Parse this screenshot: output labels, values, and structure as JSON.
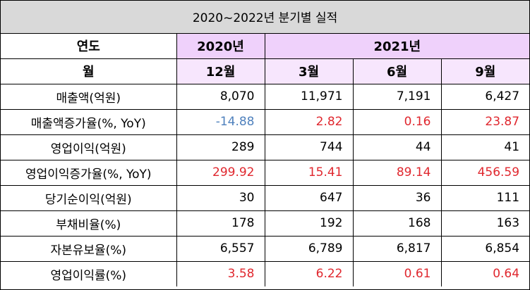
{
  "title": "2020~2022년 분기별 실적",
  "header": {
    "year_label": "연도",
    "year_2020": "2020년",
    "year_2021": "2021년",
    "month_label": "월",
    "months": [
      "12월",
      "3월",
      "6월",
      "9월"
    ]
  },
  "colors": {
    "negative": "#4f81bd",
    "growth": "#e0272e",
    "normal": "#000000",
    "title_bg": "#d9d9d9",
    "header_bg": "#efd1fb",
    "month_bg": "#f7e6fd"
  },
  "rows": [
    {
      "label": "매출액(억원)",
      "values": [
        "8,070",
        "11,971",
        "7,191",
        "6,427"
      ],
      "color": "normal"
    },
    {
      "label": "매출액증가율(%, YoY)",
      "values": [
        "-14.88",
        "2.82",
        "0.16",
        "23.87"
      ],
      "color": "mixed"
    },
    {
      "label": "영업이익(억원)",
      "values": [
        "289",
        "744",
        "44",
        "41"
      ],
      "color": "normal"
    },
    {
      "label": "영업이익증가율(%, YoY)",
      "values": [
        "299.92",
        "15.41",
        "89.14",
        "456.59"
      ],
      "color": "growth"
    },
    {
      "label": "당기순이익(억원)",
      "values": [
        "30",
        "647",
        "36",
        "111"
      ],
      "color": "normal"
    },
    {
      "label": "부채비율(%)",
      "values": [
        "178",
        "192",
        "168",
        "163"
      ],
      "color": "normal"
    },
    {
      "label": "자본유보율(%)",
      "values": [
        "6,557",
        "6,789",
        "6,817",
        "6,854"
      ],
      "color": "normal"
    },
    {
      "label": "영업이익률(%)",
      "values": [
        "3.58",
        "6.22",
        "0.61",
        "0.64"
      ],
      "color": "growth"
    }
  ]
}
